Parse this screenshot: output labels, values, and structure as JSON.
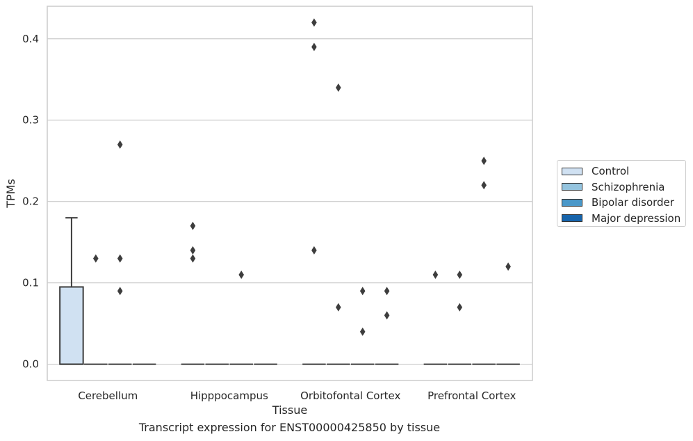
{
  "chart_data": {
    "type": "box",
    "title": "",
    "xlabel": "Tissue",
    "ylabel": "TPMs",
    "caption": "Transcript expression for ENST00000425850 by tissue",
    "ylim": [
      -0.02,
      0.44
    ],
    "yticks": [
      0.0,
      0.1,
      0.2,
      0.3,
      0.4
    ],
    "ytick_labels": [
      "0.0",
      "0.1",
      "0.2",
      "0.3",
      "0.4"
    ],
    "grid": "horizontal",
    "legend_position": "right",
    "categories": [
      "Cerebellum",
      "Hipppocampus",
      "Orbitofontal Cortex",
      "Prefrontal Cortex"
    ],
    "series": [
      {
        "name": "Control",
        "color": "#d0e1f2",
        "boxes": [
          {
            "min": 0.0,
            "q1": 0.0,
            "median": 0.0,
            "q3": 0.095,
            "max": 0.18,
            "outliers": []
          },
          {
            "min": 0.0,
            "q1": 0.0,
            "median": 0.0,
            "q3": 0.0,
            "max": 0.0,
            "outliers": [
              0.17,
              0.14,
              0.13
            ]
          },
          {
            "min": 0.0,
            "q1": 0.0,
            "median": 0.0,
            "q3": 0.0,
            "max": 0.0,
            "outliers": [
              0.42,
              0.39,
              0.14
            ]
          },
          {
            "min": 0.0,
            "q1": 0.0,
            "median": 0.0,
            "q3": 0.0,
            "max": 0.0,
            "outliers": [
              0.11
            ]
          }
        ]
      },
      {
        "name": "Schizophrenia",
        "color": "#94c4df",
        "boxes": [
          {
            "min": 0.0,
            "q1": 0.0,
            "median": 0.0,
            "q3": 0.0,
            "max": 0.0,
            "outliers": [
              0.13
            ]
          },
          {
            "min": 0.0,
            "q1": 0.0,
            "median": 0.0,
            "q3": 0.0,
            "max": 0.0,
            "outliers": []
          },
          {
            "min": 0.0,
            "q1": 0.0,
            "median": 0.0,
            "q3": 0.0,
            "max": 0.0,
            "outliers": [
              0.34,
              0.07
            ]
          },
          {
            "min": 0.0,
            "q1": 0.0,
            "median": 0.0,
            "q3": 0.0,
            "max": 0.0,
            "outliers": [
              0.11,
              0.07
            ]
          }
        ]
      },
      {
        "name": "Bipolar disorder",
        "color": "#4a98c9",
        "boxes": [
          {
            "min": 0.0,
            "q1": 0.0,
            "median": 0.0,
            "q3": 0.0,
            "max": 0.0,
            "outliers": [
              0.27,
              0.13,
              0.09
            ]
          },
          {
            "min": 0.0,
            "q1": 0.0,
            "median": 0.0,
            "q3": 0.0,
            "max": 0.0,
            "outliers": [
              0.11
            ]
          },
          {
            "min": 0.0,
            "q1": 0.0,
            "median": 0.0,
            "q3": 0.0,
            "max": 0.0,
            "outliers": [
              0.09,
              0.04
            ]
          },
          {
            "min": 0.0,
            "q1": 0.0,
            "median": 0.0,
            "q3": 0.0,
            "max": 0.0,
            "outliers": [
              0.25,
              0.22
            ]
          }
        ]
      },
      {
        "name": "Major depression",
        "color": "#1764ab",
        "boxes": [
          {
            "min": 0.0,
            "q1": 0.0,
            "median": 0.0,
            "q3": 0.0,
            "max": 0.0,
            "outliers": []
          },
          {
            "min": 0.0,
            "q1": 0.0,
            "median": 0.0,
            "q3": 0.0,
            "max": 0.0,
            "outliers": []
          },
          {
            "min": 0.0,
            "q1": 0.0,
            "median": 0.0,
            "q3": 0.0,
            "max": 0.0,
            "outliers": [
              0.09,
              0.06
            ]
          },
          {
            "min": 0.0,
            "q1": 0.0,
            "median": 0.0,
            "q3": 0.0,
            "max": 0.0,
            "outliers": [
              0.12
            ]
          }
        ]
      }
    ]
  },
  "legend": {
    "items": [
      {
        "label": "Control",
        "color": "#d0e1f2"
      },
      {
        "label": "Schizophrenia",
        "color": "#94c4df"
      },
      {
        "label": "Bipolar disorder",
        "color": "#4a98c9"
      },
      {
        "label": "Major depression",
        "color": "#1764ab"
      }
    ]
  }
}
